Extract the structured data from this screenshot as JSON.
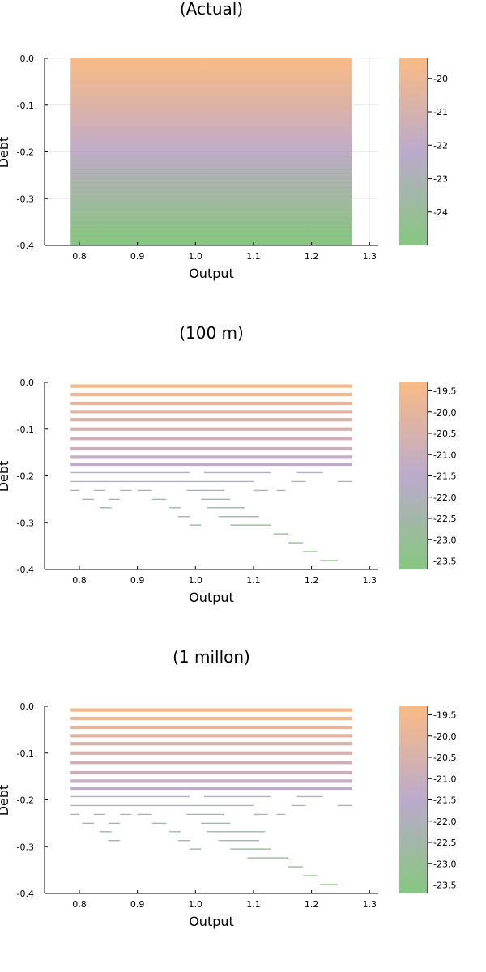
{
  "chart_data": [
    {
      "type": "heatmap",
      "title": "(Actual)",
      "xlabel": "Output",
      "ylabel": "Debt",
      "xlim": [
        0.74,
        1.315
      ],
      "ylim": [
        -0.4,
        0.0
      ],
      "xticks": [
        "0.8",
        "0.9",
        "1.0",
        "1.1",
        "1.2",
        "1.3"
      ],
      "yticks": [
        "0.0",
        "-0.1",
        "-0.2",
        "-0.3",
        "-0.4"
      ],
      "grid": true,
      "x_range": [
        0.785,
        1.27
      ],
      "y_range": [
        -0.4,
        0.0
      ],
      "colorbar": {
        "range": [
          -25.0,
          -19.4
        ],
        "ticks": [
          "-20",
          "-21",
          "-22",
          "-23",
          "-24"
        ],
        "colors": [
          "#86c77f",
          "#bbaacc",
          "#f9bb85"
        ]
      },
      "values_along_y": [
        {
          "y": 0.0,
          "value": -19.4
        },
        {
          "y": -0.2,
          "value": -22.0
        },
        {
          "y": -0.4,
          "value": -25.0
        }
      ]
    },
    {
      "type": "heatmap",
      "title": "(100 m)",
      "xlabel": "Output",
      "ylabel": "Debt",
      "xlim": [
        0.74,
        1.315
      ],
      "ylim": [
        -0.4,
        0.0
      ],
      "xticks": [
        "0.8",
        "0.9",
        "1.0",
        "1.1",
        "1.2",
        "1.3"
      ],
      "yticks": [
        "0.0",
        "-0.1",
        "-0.2",
        "-0.3",
        "-0.4"
      ],
      "grid": false,
      "colorbar": {
        "range": [
          -23.7,
          -19.3
        ],
        "ticks": [
          "-19.5",
          "-20.0",
          "-20.5",
          "-21.0",
          "-21.5",
          "-22.0",
          "-22.5",
          "-23.0",
          "-23.5"
        ],
        "colors": [
          "#86c77f",
          "#bbaacc",
          "#f9bb85"
        ]
      },
      "segments": [
        {
          "y": -0.381,
          "x": [
            1.215,
            1.245
          ],
          "value": -23.5
        },
        {
          "y": -0.362,
          "x": [
            1.185,
            1.21
          ],
          "value": -23.4
        },
        {
          "y": -0.343,
          "x": [
            1.16,
            1.185
          ],
          "value": -23.2
        },
        {
          "y": -0.324,
          "x": [
            1.135,
            1.16
          ],
          "value": -23.0
        },
        {
          "y": -0.305,
          "x": [
            1.06,
            1.13
          ],
          "value": -22.8
        },
        {
          "y": -0.305,
          "x": [
            0.99,
            1.01
          ],
          "value": -22.8
        },
        {
          "y": -0.287,
          "x": [
            1.04,
            1.11
          ],
          "value": -22.6
        },
        {
          "y": -0.287,
          "x": [
            0.97,
            0.99
          ],
          "value": -22.6
        },
        {
          "y": -0.268,
          "x": [
            0.955,
            0.975
          ],
          "value": -22.4
        },
        {
          "y": -0.268,
          "x": [
            1.02,
            1.085
          ],
          "value": -22.4
        },
        {
          "y": -0.268,
          "x": [
            0.835,
            0.855
          ],
          "value": -22.4
        },
        {
          "y": -0.25,
          "x": [
            0.805,
            0.825
          ],
          "value": -22.2
        },
        {
          "y": -0.25,
          "x": [
            0.85,
            0.87
          ],
          "value": -22.2
        },
        {
          "y": -0.25,
          "x": [
            0.925,
            0.95
          ],
          "value": -22.2
        },
        {
          "y": -0.25,
          "x": [
            1.01,
            1.06
          ],
          "value": -22.2
        },
        {
          "y": -0.231,
          "x": [
            0.785,
            0.8
          ],
          "value": -22.0
        },
        {
          "y": -0.231,
          "x": [
            0.825,
            0.845
          ],
          "value": -22.0
        },
        {
          "y": -0.231,
          "x": [
            0.87,
            0.89
          ],
          "value": -22.0
        },
        {
          "y": -0.231,
          "x": [
            0.9,
            0.925
          ],
          "value": -22.0
        },
        {
          "y": -0.231,
          "x": [
            0.985,
            1.05
          ],
          "value": -22.0
        },
        {
          "y": -0.231,
          "x": [
            1.1,
            1.125
          ],
          "value": -22.0
        },
        {
          "y": -0.231,
          "x": [
            1.14,
            1.155
          ],
          "value": -22.0
        },
        {
          "y": -0.212,
          "x": [
            0.785,
            1.1
          ],
          "value": -21.8
        },
        {
          "y": -0.212,
          "x": [
            1.165,
            1.19
          ],
          "value": -21.8
        },
        {
          "y": -0.212,
          "x": [
            1.245,
            1.27
          ],
          "value": -21.8
        },
        {
          "y": -0.193,
          "x": [
            0.785,
            0.99
          ],
          "value": -21.6
        },
        {
          "y": -0.193,
          "x": [
            1.015,
            1.13
          ],
          "value": -21.6
        },
        {
          "y": -0.193,
          "x": [
            1.175,
            1.22
          ],
          "value": -21.6
        },
        {
          "y": -0.175,
          "x": [
            0.785,
            1.27
          ],
          "value": -21.4
        },
        {
          "y": -0.16,
          "x": [
            0.785,
            1.27
          ],
          "value": -21.2
        },
        {
          "y": -0.142,
          "x": [
            0.785,
            1.27
          ],
          "value": -21.0
        },
        {
          "y": -0.12,
          "x": [
            0.785,
            1.27
          ],
          "value": -20.8
        },
        {
          "y": -0.1,
          "x": [
            0.785,
            1.27
          ],
          "value": -20.6
        },
        {
          "y": -0.08,
          "x": [
            0.785,
            1.27
          ],
          "value": -20.4
        },
        {
          "y": -0.063,
          "x": [
            0.785,
            1.27
          ],
          "value": -20.2
        },
        {
          "y": -0.045,
          "x": [
            0.785,
            1.27
          ],
          "value": -20.0
        },
        {
          "y": -0.026,
          "x": [
            0.785,
            1.27
          ],
          "value": -19.8
        },
        {
          "y": -0.008,
          "x": [
            0.785,
            1.27
          ],
          "value": -19.5
        }
      ]
    },
    {
      "type": "heatmap",
      "title": "(1 millon)",
      "xlabel": "Output",
      "ylabel": "Debt",
      "xlim": [
        0.74,
        1.315
      ],
      "ylim": [
        -0.4,
        0.0
      ],
      "xticks": [
        "0.8",
        "0.9",
        "1.0",
        "1.1",
        "1.2",
        "1.3"
      ],
      "yticks": [
        "0.0",
        "-0.1",
        "-0.2",
        "-0.3",
        "-0.4"
      ],
      "grid": false,
      "colorbar": {
        "range": [
          -23.7,
          -19.3
        ],
        "ticks": [
          "-19.5",
          "-20.0",
          "-20.5",
          "-21.0",
          "-21.5",
          "-22.0",
          "-22.5",
          "-23.0",
          "-23.5"
        ],
        "colors": [
          "#86c77f",
          "#bbaacc",
          "#f9bb85"
        ]
      },
      "segments": [
        {
          "y": -0.381,
          "x": [
            1.215,
            1.245
          ],
          "value": -23.5
        },
        {
          "y": -0.362,
          "x": [
            1.185,
            1.21
          ],
          "value": -23.4
        },
        {
          "y": -0.343,
          "x": [
            1.16,
            1.185
          ],
          "value": -23.2
        },
        {
          "y": -0.324,
          "x": [
            1.09,
            1.16
          ],
          "value": -23.0
        },
        {
          "y": -0.305,
          "x": [
            1.06,
            1.13
          ],
          "value": -22.8
        },
        {
          "y": -0.305,
          "x": [
            0.99,
            1.01
          ],
          "value": -22.8
        },
        {
          "y": -0.287,
          "x": [
            1.04,
            1.11
          ],
          "value": -22.6
        },
        {
          "y": -0.287,
          "x": [
            0.97,
            0.99
          ],
          "value": -22.6
        },
        {
          "y": -0.287,
          "x": [
            0.85,
            0.87
          ],
          "value": -22.6
        },
        {
          "y": -0.268,
          "x": [
            0.955,
            0.975
          ],
          "value": -22.4
        },
        {
          "y": -0.268,
          "x": [
            1.02,
            1.12
          ],
          "value": -22.4
        },
        {
          "y": -0.268,
          "x": [
            0.835,
            0.855
          ],
          "value": -22.4
        },
        {
          "y": -0.25,
          "x": [
            0.805,
            0.825
          ],
          "value": -22.2
        },
        {
          "y": -0.25,
          "x": [
            0.85,
            0.87
          ],
          "value": -22.2
        },
        {
          "y": -0.25,
          "x": [
            0.925,
            0.95
          ],
          "value": -22.2
        },
        {
          "y": -0.25,
          "x": [
            1.01,
            1.06
          ],
          "value": -22.2
        },
        {
          "y": -0.231,
          "x": [
            0.785,
            0.8
          ],
          "value": -22.0
        },
        {
          "y": -0.231,
          "x": [
            0.825,
            0.845
          ],
          "value": -22.0
        },
        {
          "y": -0.231,
          "x": [
            0.87,
            0.89
          ],
          "value": -22.0
        },
        {
          "y": -0.231,
          "x": [
            0.9,
            0.925
          ],
          "value": -22.0
        },
        {
          "y": -0.231,
          "x": [
            0.985,
            1.05
          ],
          "value": -22.0
        },
        {
          "y": -0.231,
          "x": [
            1.1,
            1.125
          ],
          "value": -22.0
        },
        {
          "y": -0.231,
          "x": [
            1.14,
            1.155
          ],
          "value": -22.0
        },
        {
          "y": -0.212,
          "x": [
            0.785,
            1.1
          ],
          "value": -21.8
        },
        {
          "y": -0.212,
          "x": [
            1.165,
            1.19
          ],
          "value": -21.8
        },
        {
          "y": -0.212,
          "x": [
            1.245,
            1.27
          ],
          "value": -21.8
        },
        {
          "y": -0.193,
          "x": [
            0.785,
            0.99
          ],
          "value": -21.6
        },
        {
          "y": -0.193,
          "x": [
            1.015,
            1.13
          ],
          "value": -21.6
        },
        {
          "y": -0.193,
          "x": [
            1.175,
            1.22
          ],
          "value": -21.6
        },
        {
          "y": -0.175,
          "x": [
            0.785,
            1.27
          ],
          "value": -21.4
        },
        {
          "y": -0.16,
          "x": [
            0.785,
            1.27
          ],
          "value": -21.2
        },
        {
          "y": -0.142,
          "x": [
            0.785,
            1.27
          ],
          "value": -21.0
        },
        {
          "y": -0.12,
          "x": [
            0.785,
            1.27
          ],
          "value": -20.8
        },
        {
          "y": -0.1,
          "x": [
            0.785,
            1.27
          ],
          "value": -20.6
        },
        {
          "y": -0.08,
          "x": [
            0.785,
            1.27
          ],
          "value": -20.4
        },
        {
          "y": -0.063,
          "x": [
            0.785,
            1.27
          ],
          "value": -20.2
        },
        {
          "y": -0.045,
          "x": [
            0.785,
            1.27
          ],
          "value": -20.0
        },
        {
          "y": -0.026,
          "x": [
            0.785,
            1.27
          ],
          "value": -19.8
        },
        {
          "y": -0.008,
          "x": [
            0.785,
            1.27
          ],
          "value": -19.5
        }
      ]
    }
  ]
}
